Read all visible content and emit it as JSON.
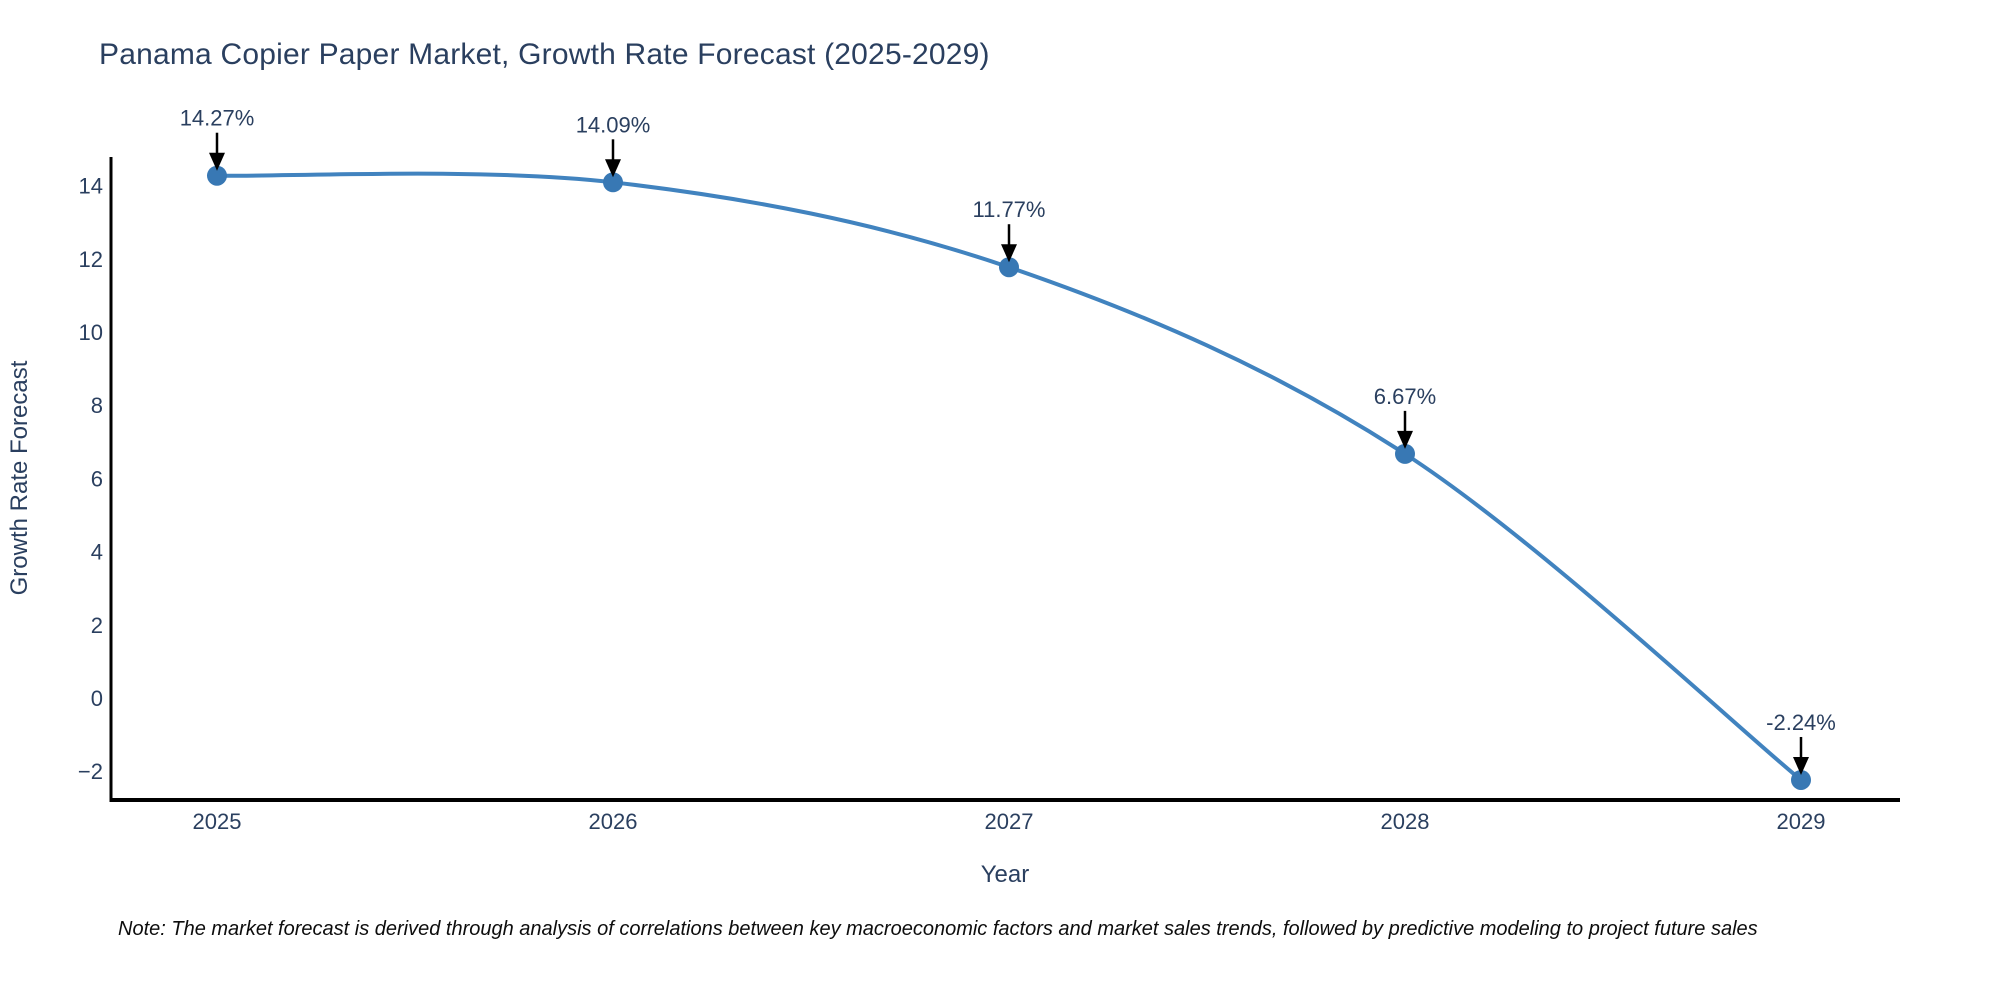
{
  "chart_data": {
    "type": "line",
    "title": "Panama Copier Paper Market, Growth Rate Forecast (2025-2029)",
    "xlabel": "Year",
    "ylabel": "Growth Rate Forecast",
    "x": [
      2025,
      2026,
      2027,
      2028,
      2029
    ],
    "values": [
      14.27,
      14.09,
      11.77,
      6.67,
      -2.24
    ],
    "point_labels": [
      "14.27%",
      "14.09%",
      "11.77%",
      "6.67%",
      "-2.24%"
    ],
    "x_tick_labels": [
      "2025",
      "2026",
      "2027",
      "2028",
      "2029"
    ],
    "y_tick_values": [
      14,
      12,
      10,
      8,
      6,
      4,
      2,
      0,
      -2
    ],
    "ylim": [
      -2.8,
      14.8
    ],
    "grid": false,
    "legend": false,
    "line_shape": "spline",
    "line_color": "#4183bf",
    "marker_color": "#3878b4",
    "text_color": "#2a3f5f",
    "axis_color": "#000000",
    "arrow_color": "#000000"
  },
  "note": "Note: The market forecast is derived through analysis of correlations between key macroeconomic factors and market sales trends, followed by predictive modeling to project future sales"
}
